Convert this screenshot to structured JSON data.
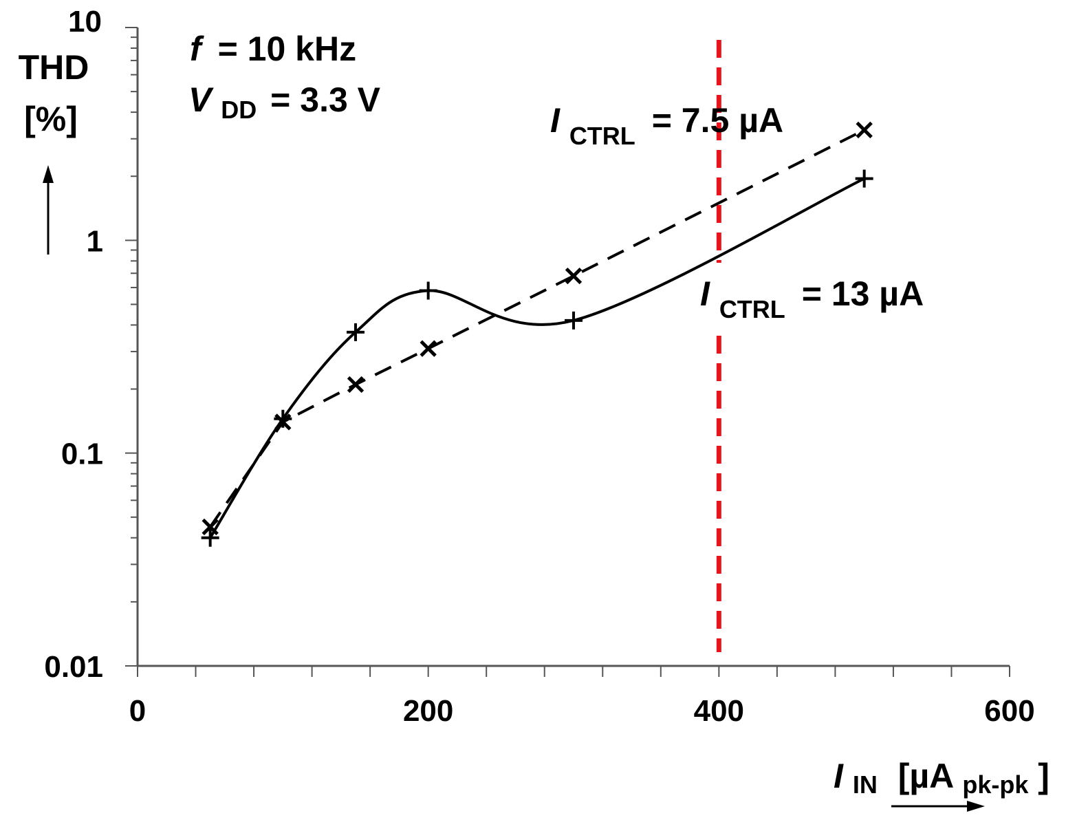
{
  "chart_data": {
    "type": "line",
    "x_scale": "linear",
    "y_scale": "log",
    "xlim": [
      0,
      600
    ],
    "ylim": [
      0.01,
      10
    ],
    "x_ticks": [
      0,
      200,
      400,
      600
    ],
    "x_tick_labels": [
      "0",
      "200",
      "400",
      "600"
    ],
    "x_minor_step": 40,
    "y_ticks": [
      0.01,
      0.1,
      1,
      10
    ],
    "y_tick_labels": [
      "0.01",
      "0.1",
      "1",
      "10"
    ],
    "ylabel": {
      "line1": "THD",
      "line2": "[%]"
    },
    "xlabel": {
      "symbol": "I",
      "sub": "IN",
      "unit_open": "[µA",
      "unit_sub": "pk-pk",
      "unit_close": "]"
    },
    "conditions": {
      "freq": {
        "symbol": "f",
        "text": "= 10 kHz"
      },
      "vdd": {
        "symbol": "V",
        "sub": "DD",
        "text": "= 3.3 V"
      }
    },
    "series": [
      {
        "name": "ICTRL = 7.5 µA",
        "label": {
          "symbol": "I",
          "sub": "CTRL",
          "text": "= 7.5 µA"
        },
        "style": "dashed",
        "marker": "x",
        "x": [
          50,
          100,
          150,
          200,
          300,
          500
        ],
        "y": [
          0.045,
          0.14,
          0.21,
          0.31,
          0.68,
          3.3
        ]
      },
      {
        "name": "ICTRL = 13 µA",
        "label": {
          "symbol": "I",
          "sub": "CTRL",
          "text": "= 13 µA"
        },
        "style": "solid",
        "marker": "+",
        "x": [
          50,
          100,
          150,
          200,
          300,
          500
        ],
        "y": [
          0.04,
          0.145,
          0.37,
          0.58,
          0.42,
          1.95
        ]
      }
    ],
    "reference_line": {
      "x": 400,
      "color": "#e8141c",
      "style": "dashed"
    }
  }
}
